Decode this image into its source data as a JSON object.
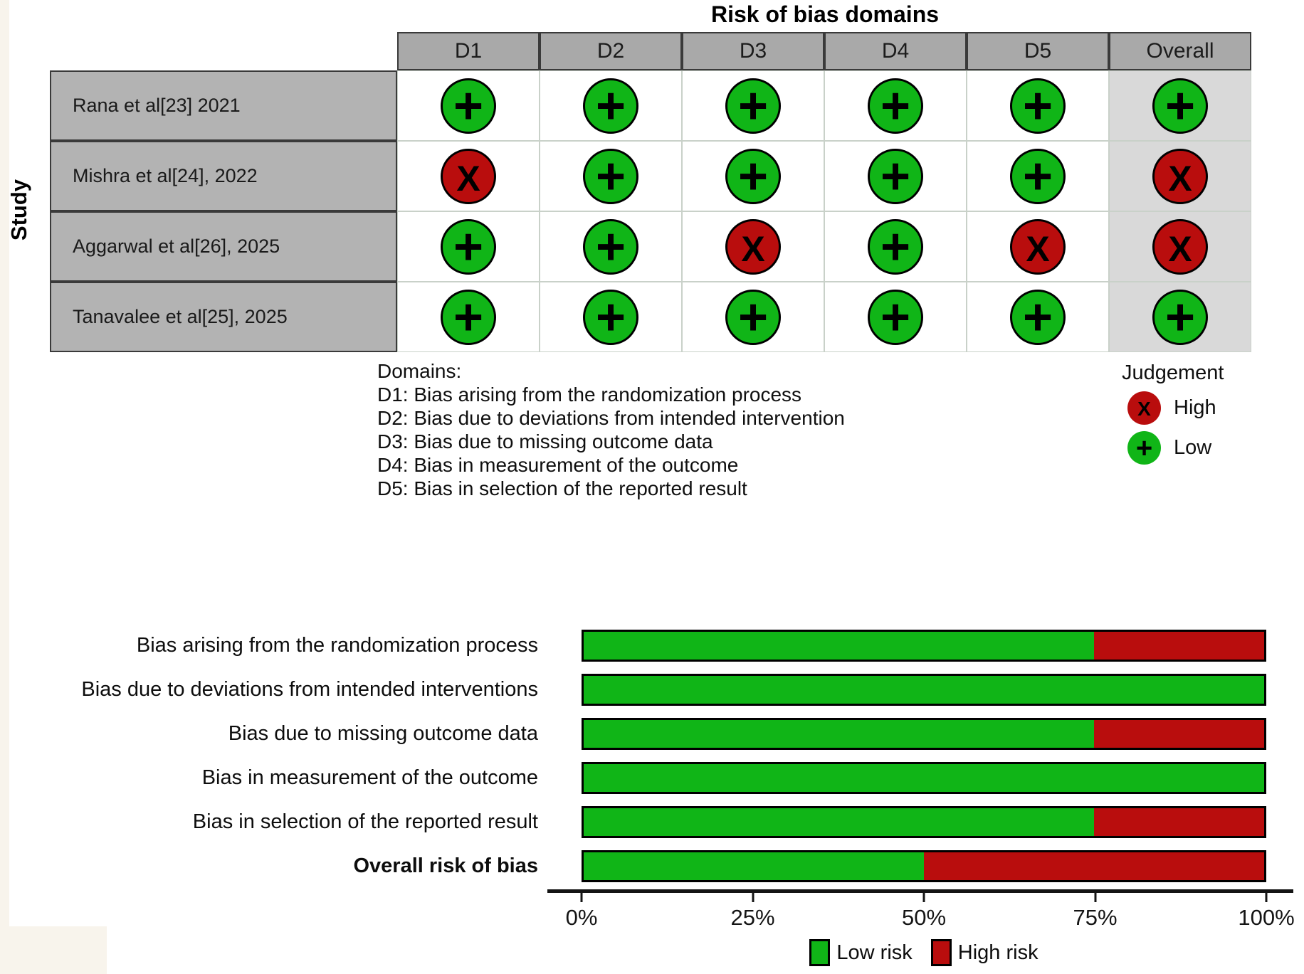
{
  "figure": {
    "title": "Risk of bias domains",
    "study_axis_label": "Study"
  },
  "colors": {
    "low": "#10b517",
    "high": "#b90d0d"
  },
  "table": {
    "columns": [
      "D1",
      "D2",
      "D3",
      "D4",
      "D5",
      "Overall"
    ],
    "symbols": {
      "low": "+",
      "high": "X"
    },
    "rows": [
      {
        "study": "Rana et al[23] 2021",
        "judgements": [
          "low",
          "low",
          "low",
          "low",
          "low",
          "low"
        ]
      },
      {
        "study": "Mishra et al[24], 2022",
        "judgements": [
          "high",
          "low",
          "low",
          "low",
          "low",
          "high"
        ]
      },
      {
        "study": "Aggarwal et al[26], 2025",
        "judgements": [
          "low",
          "low",
          "high",
          "low",
          "high",
          "high"
        ]
      },
      {
        "study": "Tanavalee et al[25], 2025",
        "judgements": [
          "low",
          "low",
          "low",
          "low",
          "low",
          "low"
        ]
      }
    ]
  },
  "domains_note": {
    "heading": "Domains:",
    "lines": [
      "D1: Bias arising from the randomization process",
      "D2: Bias due to deviations from intended intervention",
      "D3: Bias due to missing outcome data",
      "D4: Bias in measurement of the outcome",
      "D5: Bias in selection of the reported result"
    ]
  },
  "judgement_legend": {
    "title": "Judgement",
    "items": [
      {
        "key": "high",
        "symbol": "X",
        "label": "High"
      },
      {
        "key": "low",
        "symbol": "+",
        "label": "Low"
      }
    ]
  },
  "chart_data": {
    "type": "bar",
    "stacked": true,
    "orientation": "horizontal",
    "categories": [
      "Bias arising from the randomization process",
      "Bias due to deviations from intended interventions",
      "Bias due to missing outcome data",
      "Bias in measurement of the outcome",
      "Bias in selection of the reported result",
      "Overall risk of bias"
    ],
    "bold_category_index": 5,
    "series": [
      {
        "name": "Low risk",
        "color_key": "low",
        "values": [
          75,
          100,
          75,
          100,
          75,
          50
        ]
      },
      {
        "name": "High risk",
        "color_key": "high",
        "values": [
          25,
          0,
          25,
          0,
          25,
          50
        ]
      }
    ],
    "xlim": [
      0,
      100
    ],
    "x_ticks": [
      0,
      25,
      50,
      75,
      100
    ],
    "x_tick_labels": [
      "0%",
      "25%",
      "50%",
      "75%",
      "100%"
    ],
    "grid": false,
    "legend_position": "bottom"
  }
}
